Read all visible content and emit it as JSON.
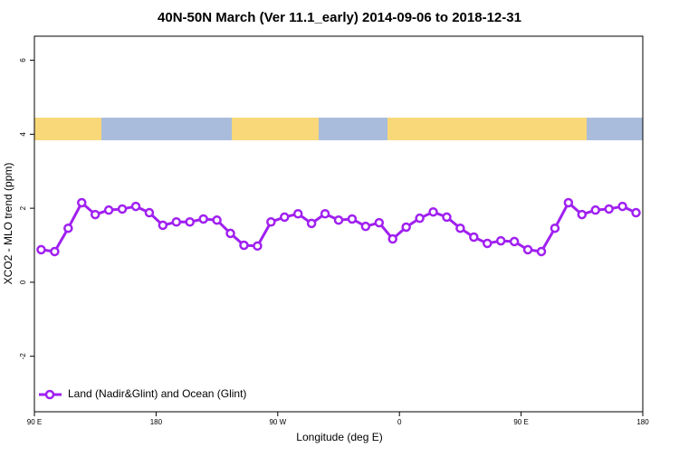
{
  "chart_data": {
    "type": "line",
    "title": "40N-50N March (Ver 11.1_early)   2014-09-06 to 2018-12-31",
    "xlabel": "Longitude (deg E)",
    "ylabel": "XCO2 - MLO trend (ppm)",
    "x": [
      95,
      105,
      115,
      125,
      135,
      145,
      155,
      165,
      175,
      185,
      195,
      205,
      215,
      225,
      235,
      245,
      255,
      265,
      275,
      285,
      295,
      305,
      315,
      325,
      335,
      345,
      355,
      365,
      375,
      385,
      395,
      405,
      415,
      425,
      435,
      445,
      455,
      465,
      475,
      485,
      495,
      505,
      515,
      525,
      535
    ],
    "series": [
      {
        "name": "Land (Nadir&Glint) and Ocean (Glint)",
        "color": "#a020f0",
        "values": [
          0.88,
          0.83,
          1.46,
          2.15,
          1.83,
          1.95,
          1.98,
          2.05,
          1.88,
          1.54,
          1.63,
          1.63,
          1.71,
          1.68,
          1.32,
          1.0,
          0.98,
          1.63,
          1.76,
          1.85,
          1.59,
          1.85,
          1.68,
          1.71,
          1.51,
          1.61,
          1.17,
          1.49,
          1.73,
          1.9,
          1.76,
          1.46,
          1.22,
          1.05,
          1.12,
          1.1,
          0.88,
          0.83,
          1.46,
          2.15,
          1.83,
          1.95,
          1.98,
          2.05,
          1.88
        ]
      }
    ],
    "xlim": [
      90,
      540
    ],
    "xticks": [
      {
        "value": 90,
        "label": "90 E"
      },
      {
        "value": 180,
        "label": "180"
      },
      {
        "value": 270,
        "label": "90 W"
      },
      {
        "value": 360,
        "label": "0"
      },
      {
        "value": 450,
        "label": "90 E"
      },
      {
        "value": 540,
        "label": "180"
      }
    ],
    "ylim": [
      -3.5,
      6.65
    ],
    "yticks": [
      -2,
      0,
      2,
      4,
      6
    ],
    "legend": "bottom-left"
  }
}
